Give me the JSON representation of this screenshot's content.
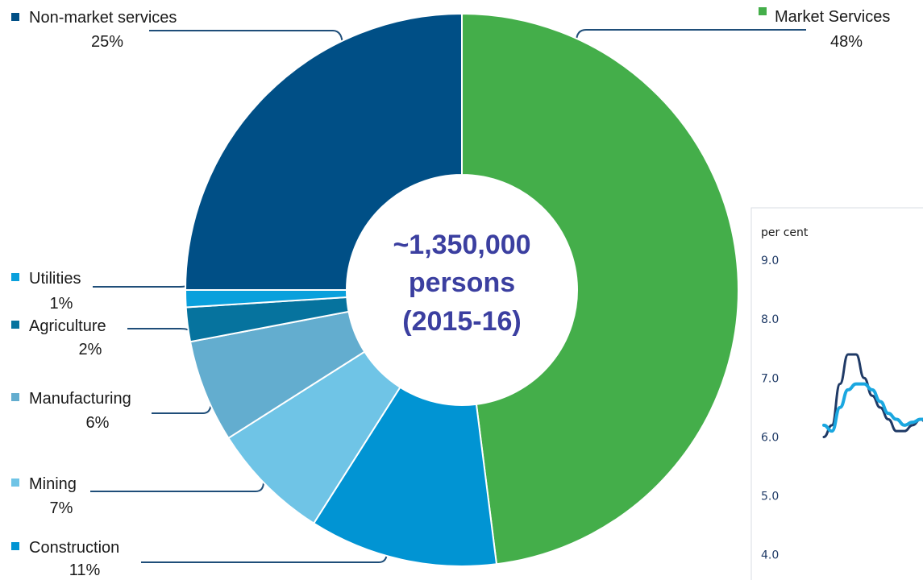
{
  "chart_data": [
    {
      "type": "pie",
      "variant": "donut",
      "center_label": [
        "~1,350,000",
        "persons",
        "(2015-16)"
      ],
      "center_color": "#3b3fa0",
      "slices": [
        {
          "label": "Market Services",
          "value": 48,
          "display": "48%",
          "color": "#44ae4a"
        },
        {
          "label": "Construction",
          "value": 11,
          "display": "11%",
          "color": "#0194d3"
        },
        {
          "label": "Mining",
          "value": 7,
          "display": "7%",
          "color": "#6fc4e6"
        },
        {
          "label": "Manufacturing",
          "value": 6,
          "display": "6%",
          "color": "#63adcf"
        },
        {
          "label": "Agriculture",
          "value": 2,
          "display": "2%",
          "color": "#06739e"
        },
        {
          "label": "Utilities",
          "value": 1,
          "display": "1%",
          "color": "#0aa0dc"
        },
        {
          "label": "Non-market services",
          "value": 25,
          "display": "25%",
          "color": "#004f86"
        }
      ],
      "legend_placement": "around chart with leader lines"
    },
    {
      "type": "line",
      "partial": true,
      "ylabel": "per cent",
      "y_ticks": [
        "9.0",
        "8.0",
        "7.0",
        "6.0",
        "5.0",
        "4.0"
      ],
      "ylim": [
        3.6,
        9.0
      ],
      "x": [
        0,
        1,
        2,
        3,
        4,
        5,
        6,
        7,
        8,
        9,
        10,
        11,
        12,
        13,
        14,
        15
      ],
      "series": [
        {
          "color": "#1f3a66",
          "values": [
            6.0,
            6.2,
            6.9,
            7.4,
            7.4,
            7.0,
            6.7,
            6.5,
            6.3,
            6.1,
            6.1,
            6.2,
            6.3,
            6.2,
            6.2,
            6.2
          ]
        },
        {
          "color": "#1aa7e0",
          "values": [
            6.2,
            6.1,
            6.5,
            6.8,
            6.9,
            6.9,
            6.8,
            6.6,
            6.4,
            6.3,
            6.2,
            6.25,
            6.3,
            6.3,
            6.3,
            6.3
          ]
        }
      ]
    }
  ]
}
